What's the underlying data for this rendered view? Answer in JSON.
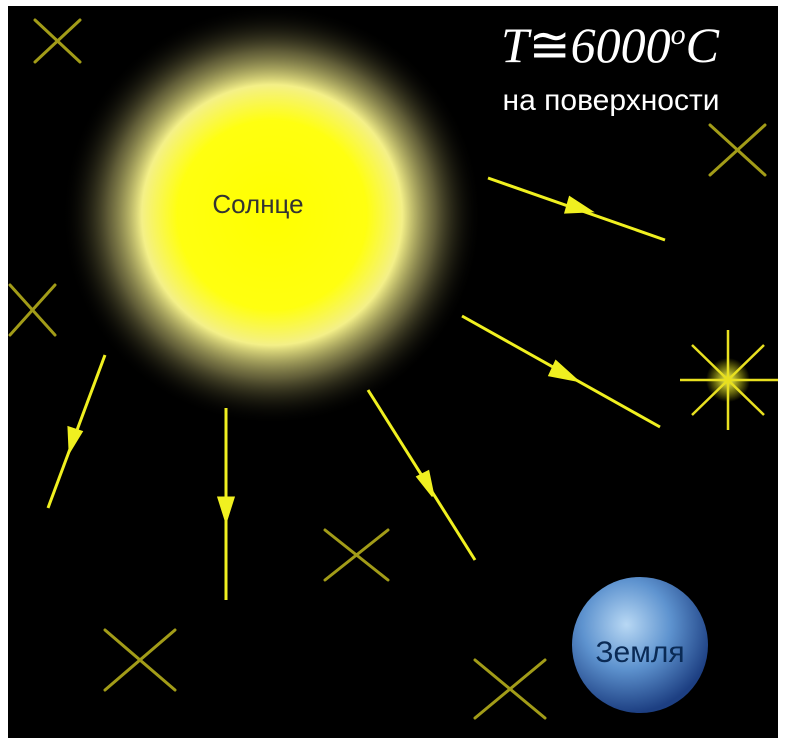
{
  "temperature": {
    "symbol": "T",
    "relation": "≅",
    "value": "6000",
    "degree": "o",
    "unit": "C"
  },
  "caption": "на поверхности",
  "sun": {
    "label": "Солнце"
  },
  "earth": {
    "label": "Земля"
  }
}
